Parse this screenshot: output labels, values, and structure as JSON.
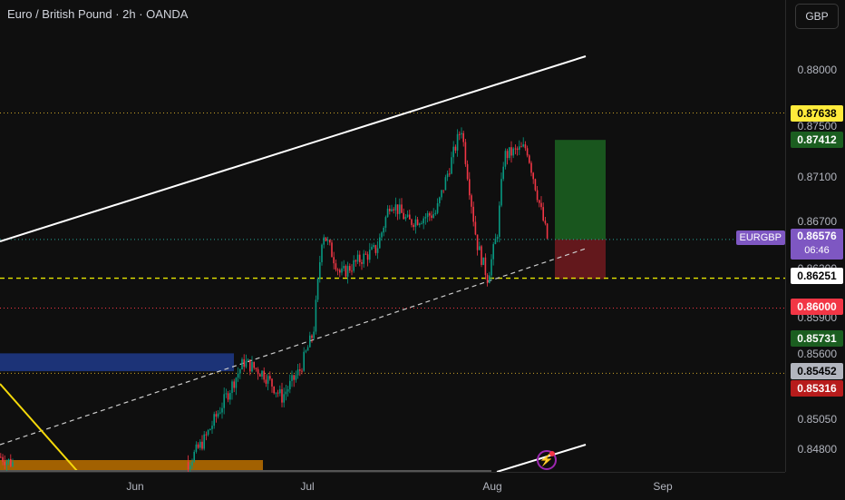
{
  "header": {
    "title": "Euro / British Pound · 2h · OANDA"
  },
  "currency_button": "GBP",
  "symbol_label": "EURGBP",
  "current": {
    "price": "0.86576",
    "countdown": "06:46"
  },
  "price_ticks": [
    "0.88000",
    "0.87500",
    "0.87100",
    "0.86700",
    "0.86300",
    "0.85900",
    "0.85600",
    "0.85050",
    "0.84800"
  ],
  "price_labels": [
    {
      "text": "0.87638",
      "bg": "#ffeb3b",
      "fg": "#000000"
    },
    {
      "text": "0.87412",
      "bg": "#1b5e20",
      "fg": "#ffffff"
    },
    {
      "text": "0.86251",
      "bg": "#ffffff",
      "fg": "#000000"
    },
    {
      "text": "0.86000",
      "bg": "#f23645",
      "fg": "#ffffff"
    },
    {
      "text": "0.85731",
      "bg": "#1b5e20",
      "fg": "#ffffff"
    },
    {
      "text": "0.85452",
      "bg": "#b2b5be",
      "fg": "#000000"
    },
    {
      "text": "0.85316",
      "bg": "#b71c1c",
      "fg": "#ffffff"
    }
  ],
  "time_axis": [
    "Jun",
    "Jul",
    "Aug",
    "Sep"
  ],
  "colors": {
    "up": "#089981",
    "down": "#f23645",
    "accent": "#7e57c2",
    "background": "#0f0f0f"
  },
  "chart_data": {
    "type": "candlestick",
    "symbol": "EURGBP",
    "timeframe": "2h",
    "ylim": [
      0.8455,
      0.8835
    ],
    "close_path": [
      {
        "x": "May 12",
        "y": 0.8475
      },
      {
        "x": "May 15",
        "y": 0.847
      },
      {
        "x": "Jun 05",
        "y": 0.8468
      },
      {
        "x": "Jun 10",
        "y": 0.849
      },
      {
        "x": "Jun 13",
        "y": 0.852
      },
      {
        "x": "Jun 17",
        "y": 0.8555
      },
      {
        "x": "Jun 20",
        "y": 0.8545
      },
      {
        "x": "Jun 24",
        "y": 0.8525
      },
      {
        "x": "Jun 27",
        "y": 0.8548
      },
      {
        "x": "Jul 01",
        "y": 0.858
      },
      {
        "x": "Jul 03",
        "y": 0.8665
      },
      {
        "x": "Jul 07",
        "y": 0.8628
      },
      {
        "x": "Jul 10",
        "y": 0.864
      },
      {
        "x": "Jul 14",
        "y": 0.865
      },
      {
        "x": "Jul 17",
        "y": 0.869
      },
      {
        "x": "Jul 21",
        "y": 0.8672
      },
      {
        "x": "Jul 24",
        "y": 0.868
      },
      {
        "x": "Jul 28",
        "y": 0.8752
      },
      {
        "x": "Jul 31",
        "y": 0.8655
      },
      {
        "x": "Aug 01",
        "y": 0.8625
      },
      {
        "x": "Aug 04",
        "y": 0.8665
      },
      {
        "x": "Aug 07",
        "y": 0.8728
      },
      {
        "x": "Aug 11",
        "y": 0.8735
      },
      {
        "x": "Aug 13",
        "y": 0.8658
      }
    ],
    "horizontal_levels": [
      0.87638,
      0.86251,
      0.86,
      0.85452
    ],
    "position": {
      "entry": 0.86576,
      "target": 0.87412,
      "stop": 0.86251
    }
  }
}
